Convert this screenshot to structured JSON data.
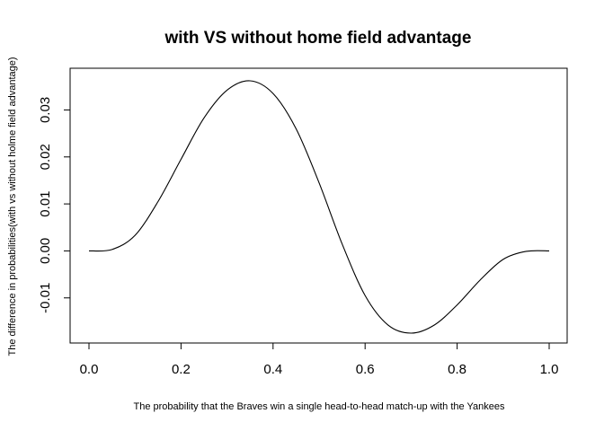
{
  "chart_data": {
    "type": "line",
    "title": "with VS without home field advantage",
    "xlabel": "The probability that the Braves win a single head-to-head match-up with the Yankees",
    "ylabel": "The difference in probabilities(with vs without holme field advantage)",
    "xlim": [
      0.0,
      1.0
    ],
    "ylim": [
      -0.0175,
      0.0362
    ],
    "x_ticks": [
      0.0,
      0.2,
      0.4,
      0.6,
      0.8,
      1.0
    ],
    "x_tick_labels": [
      "0.0",
      "0.2",
      "0.4",
      "0.6",
      "0.8",
      "1.0"
    ],
    "y_ticks": [
      -0.01,
      0.0,
      0.01,
      0.02,
      0.03
    ],
    "y_tick_labels": [
      "-0.01",
      "0.00",
      "0.01",
      "0.02",
      "0.03"
    ],
    "grid": false,
    "legend": "none",
    "series": [
      {
        "x": [
          0.0,
          0.05,
          0.1,
          0.15,
          0.2,
          0.25,
          0.3,
          0.35,
          0.4,
          0.45,
          0.5,
          0.55,
          0.6,
          0.65,
          0.7,
          0.75,
          0.8,
          0.85,
          0.9,
          0.95,
          1.0
        ],
        "y": [
          0.0,
          0.0003,
          0.0033,
          0.0105,
          0.0195,
          0.0283,
          0.0342,
          0.0362,
          0.0335,
          0.026,
          0.0145,
          0.0015,
          -0.0095,
          -0.0158,
          -0.0175,
          -0.0158,
          -0.0115,
          -0.0062,
          -0.0018,
          -0.0001,
          0.0
        ]
      }
    ]
  }
}
